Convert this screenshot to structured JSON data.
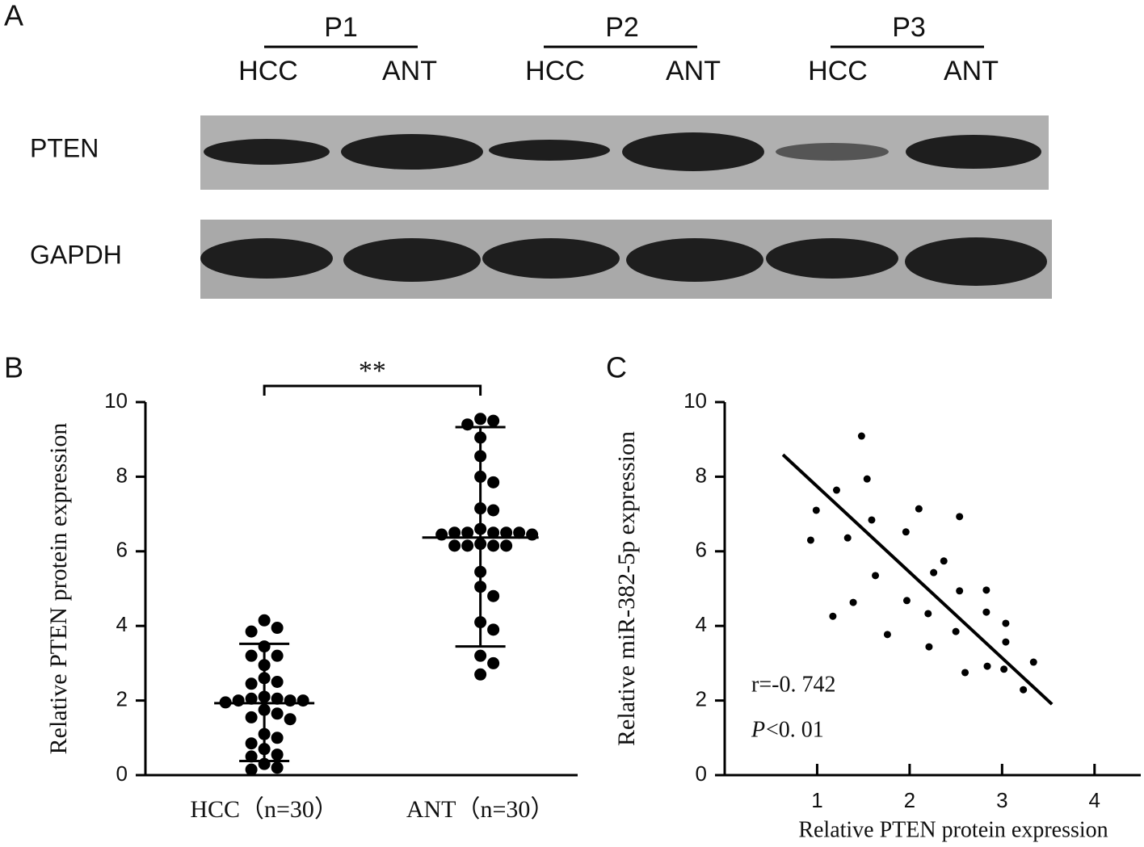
{
  "panel_labels": [
    "A",
    "B",
    "C"
  ],
  "panel_a": {
    "patients": [
      "P1",
      "P2",
      "P3"
    ],
    "lanes": [
      "HCC",
      "ANT",
      "HCC",
      "ANT",
      "HCC",
      "ANT"
    ],
    "blots": [
      "PTEN",
      "GAPDH"
    ]
  },
  "chart_data": [
    {
      "type": "dotplot",
      "y_label": "Relative PTEN protein expression",
      "categories": [
        "HCC（n=30）",
        "ANT（n=30）"
      ],
      "significance": "**",
      "color": "#000000",
      "ylim": [
        0,
        10
      ],
      "yticks": [
        0,
        2,
        4,
        6,
        8,
        10
      ],
      "groups": [
        {
          "values": [
            4.15,
            3.95,
            3.85,
            3.45,
            3.2,
            3.2,
            2.95,
            2.6,
            2.5,
            2.45,
            2.05,
            2.0,
            2.0,
            1.95,
            2.0,
            2.05,
            2.1,
            1.75,
            1.65,
            1.55,
            1.5,
            1.1,
            1.0,
            0.85,
            0.7,
            0.55,
            0.5,
            0.3,
            0.2,
            0.15
          ],
          "mean": 1.93,
          "sd_bounds": [
            0.38,
            3.52
          ]
        },
        {
          "values": [
            9.55,
            9.5,
            9.4,
            9.05,
            8.55,
            8.0,
            7.85,
            7.1,
            7.15,
            6.6,
            6.5,
            6.5,
            6.5,
            6.45,
            6.5,
            6.5,
            6.45,
            6.2,
            6.15,
            6.15,
            6.15,
            6.15,
            5.45,
            5.05,
            4.8,
            4.1,
            3.9,
            3.2,
            3.0,
            2.7
          ],
          "mean": 6.37,
          "sd_bounds": [
            3.45,
            9.33
          ]
        }
      ]
    },
    {
      "type": "scatter",
      "x_label": "Relative PTEN protein expression",
      "y_label": "Relative miR-382-5p expression",
      "annotation_r": "r=-0. 742",
      "annotation_p": "P",
      "annotation_p_rest": "<0. 01",
      "color": "#000000",
      "xlim": [
        0,
        4.5
      ],
      "xticks": [
        1,
        2,
        3,
        4
      ],
      "ylim": [
        0,
        10
      ],
      "yticks": [
        0,
        2,
        4,
        6,
        8,
        10
      ],
      "x": [
        0.93,
        0.99,
        1.17,
        1.21,
        1.33,
        1.39,
        1.48,
        1.54,
        1.59,
        1.63,
        1.76,
        1.96,
        1.97,
        2.1,
        2.2,
        2.21,
        2.26,
        2.37,
        2.5,
        2.54,
        2.54,
        2.6,
        2.83,
        2.83,
        2.84,
        3.02,
        3.04,
        3.04,
        3.23,
        3.34
      ],
      "y": [
        6.3,
        7.1,
        4.26,
        7.64,
        6.36,
        4.63,
        9.09,
        7.94,
        6.84,
        5.35,
        3.77,
        6.52,
        4.68,
        7.14,
        4.33,
        3.44,
        5.43,
        5.74,
        3.85,
        4.94,
        6.93,
        2.75,
        4.96,
        4.37,
        2.92,
        2.84,
        4.07,
        3.57,
        2.29,
        3.03
      ],
      "fit": {
        "x": [
          0.63,
          3.54
        ],
        "y": [
          8.59,
          1.9
        ]
      }
    }
  ]
}
